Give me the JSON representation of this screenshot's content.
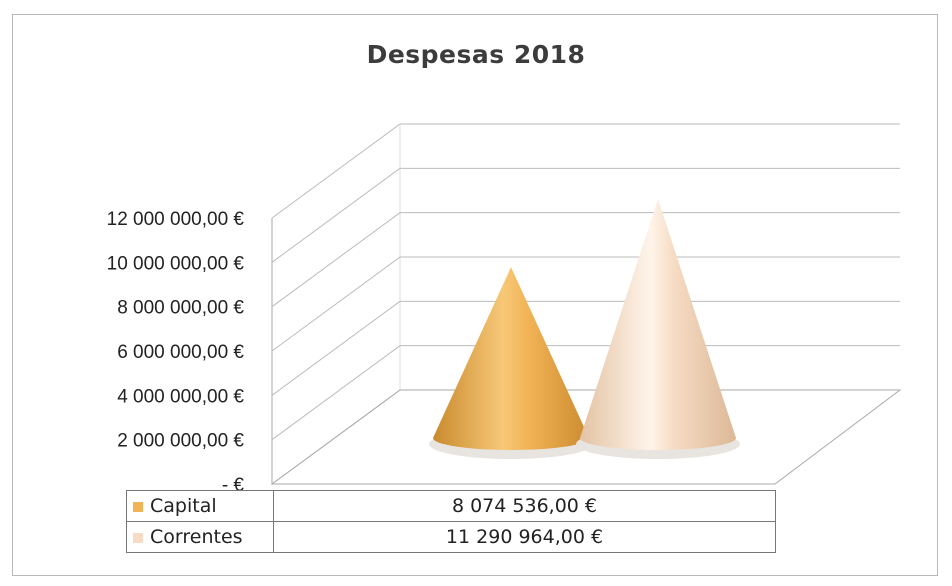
{
  "chart_data": {
    "type": "bar",
    "title": "Despesas 2018",
    "categories": [
      "Capital",
      "Correntes"
    ],
    "values": [
      8074536,
      11290964
    ],
    "value_labels": [
      "8 074 536,00 €",
      "11 290 964,00 €"
    ],
    "ylim": [
      0,
      12000000
    ],
    "y_ticks": [
      0,
      2000000,
      4000000,
      6000000,
      8000000,
      10000000,
      12000000
    ],
    "y_tick_labels": [
      "-   €",
      "2 000 000,00 €",
      "4 000 000,00 €",
      "6 000 000,00 €",
      "8 000 000,00 €",
      "10 000 000,00 €",
      "12 000 000,00 €"
    ],
    "shape": "cone-3d",
    "grid": true,
    "legend": "data-table-below",
    "colors": [
      "#f2b456",
      "#f6dcc4"
    ]
  }
}
